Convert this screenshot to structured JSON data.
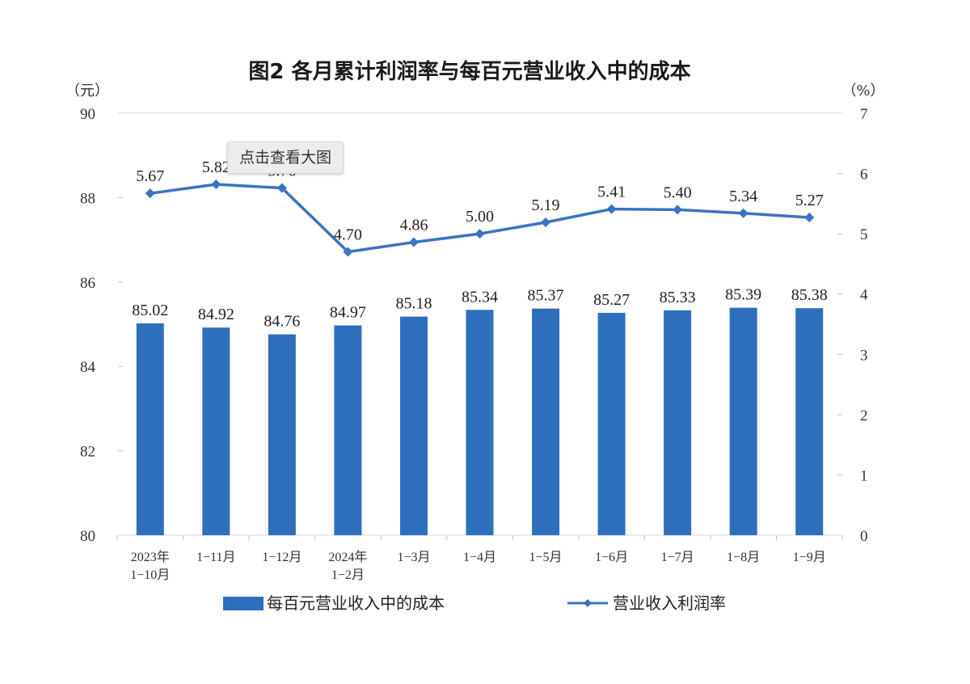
{
  "tooltip": {
    "label": "点击查看大图"
  },
  "chart_data": {
    "type": "bar+line",
    "title": "图2  各月累计利润率与每百元营业收入中的成本",
    "left_unit": "（元）",
    "right_unit": "（%）",
    "categories": [
      [
        "2023年",
        "1−10月"
      ],
      [
        "1−11月"
      ],
      [
        "1−12月"
      ],
      [
        "2024年",
        "1−2月"
      ],
      [
        "1−3月"
      ],
      [
        "1−4月"
      ],
      [
        "1−5月"
      ],
      [
        "1−6月"
      ],
      [
        "1−7月"
      ],
      [
        "1−8月"
      ],
      [
        "1−9月"
      ]
    ],
    "left_axis": {
      "ylim": [
        80,
        90
      ],
      "ticks": [
        80,
        82,
        84,
        86,
        88,
        90
      ]
    },
    "right_axis": {
      "ylim": [
        0,
        7
      ],
      "ticks": [
        0,
        1,
        2,
        3,
        4,
        5,
        6,
        7
      ]
    },
    "series": [
      {
        "name": "每百元营业收入中的成本",
        "type": "bar",
        "axis": "left",
        "values": [
          85.02,
          84.92,
          84.76,
          84.97,
          85.18,
          85.34,
          85.37,
          85.27,
          85.33,
          85.39,
          85.38
        ],
        "labels": [
          "85.02",
          "84.92",
          "84.76",
          "84.97",
          "85.18",
          "85.34",
          "85.37",
          "85.27",
          "85.33",
          "85.39",
          "85.38"
        ]
      },
      {
        "name": "营业收入利润率",
        "type": "line",
        "axis": "right",
        "values": [
          5.67,
          5.82,
          5.76,
          4.7,
          4.86,
          5.0,
          5.19,
          5.41,
          5.4,
          5.34,
          5.27
        ],
        "labels": [
          "5.67",
          "5.82",
          "5.76",
          "4.70",
          "4.86",
          "5.00",
          "5.19",
          "5.41",
          "5.40",
          "5.34",
          "5.27"
        ]
      }
    ],
    "colors": {
      "bar": "#2e6fbd",
      "line": "#3a72c4",
      "grid": "#d9d9d9",
      "axis": "#bfbfbf"
    },
    "legend": {
      "position": "bottom"
    },
    "grid": {
      "horizontal": "top line only"
    }
  }
}
